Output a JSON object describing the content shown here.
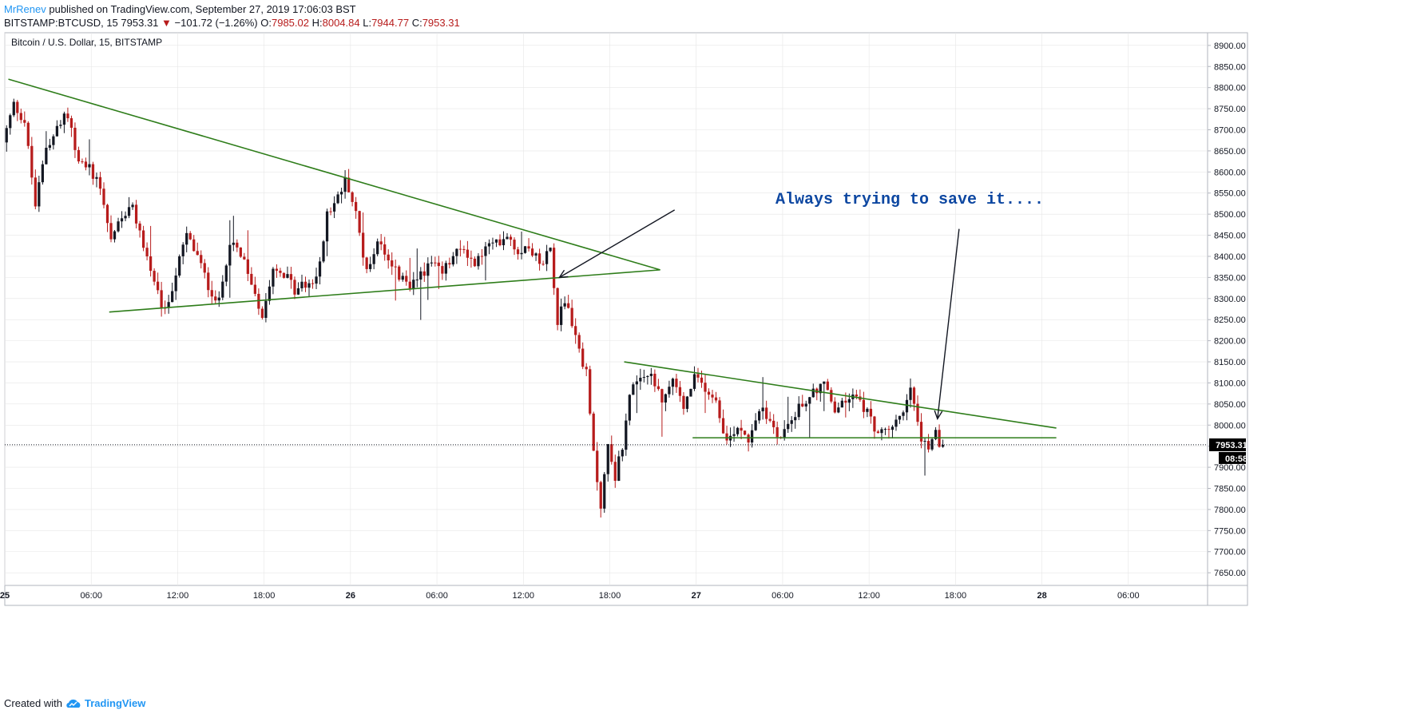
{
  "header": {
    "author": "MrRenev",
    "published_text": " published on TradingView.com, September 27, 2019 17:06:03 BST",
    "symbol_line": "BITSTAMP:BTCUSD, 15",
    "last_price": "7953.31",
    "change_arrow": "▼",
    "change_text": "−101.72 (−1.26%)",
    "o_label": "O:",
    "o_value": "7985.02",
    "h_label": "H:",
    "h_value": "8004.84",
    "l_label": "L:",
    "l_value": "7944.77",
    "c_label": "C:",
    "c_value": "7953.31"
  },
  "footer": {
    "created_with": "Created with",
    "brand": "TradingView",
    "brand_icon": "tradingview-cloud-icon"
  },
  "chart_data": {
    "type": "candlestick",
    "title": "Bitcoin / U.S. Dollar, 15, BITSTAMP",
    "interval_minutes": 15,
    "colors": {
      "up": "#131722",
      "down": "#b71c1c",
      "trendline": "#2e7d1a",
      "annotation": "#0d47a1",
      "grid": "#e6e6e6"
    },
    "ylim": [
      7620,
      8930
    ],
    "price_ticks": [
      "8900.00",
      "8850.00",
      "8800.00",
      "8750.00",
      "8700.00",
      "8650.00",
      "8600.00",
      "8550.00",
      "8500.00",
      "8450.00",
      "8400.00",
      "8350.00",
      "8300.00",
      "8250.00",
      "8200.00",
      "8150.00",
      "8100.00",
      "8050.00",
      "8000.00",
      "7950.00",
      "7900.00",
      "7850.00",
      "7800.00",
      "7750.00",
      "7700.00",
      "7650.00"
    ],
    "xlim": [
      "Sep 25 00:00",
      "Sep 28 11:30"
    ],
    "time_ticks": [
      {
        "label": "25",
        "at": "Sep 25 00:00",
        "bold": true
      },
      {
        "label": "06:00",
        "at": "Sep 25 06:00"
      },
      {
        "label": "12:00",
        "at": "Sep 25 12:00"
      },
      {
        "label": "18:00",
        "at": "Sep 25 18:00"
      },
      {
        "label": "26",
        "at": "Sep 26 00:00",
        "bold": true
      },
      {
        "label": "06:00",
        "at": "Sep 26 06:00"
      },
      {
        "label": "12:00",
        "at": "Sep 26 12:00"
      },
      {
        "label": "18:00",
        "at": "Sep 26 18:00"
      },
      {
        "label": "27",
        "at": "Sep 27 00:00",
        "bold": true
      },
      {
        "label": "06:00",
        "at": "Sep 27 06:00"
      },
      {
        "label": "12:00",
        "at": "Sep 27 12:00"
      },
      {
        "label": "18:00",
        "at": "Sep 27 18:00"
      },
      {
        "label": "28",
        "at": "Sep 28 00:00",
        "bold": true
      },
      {
        "label": "06:00",
        "at": "Sep 28 06:00"
      }
    ],
    "last_price_label": "7953.31",
    "countdown_label": "08:58",
    "price_path": [
      {
        "t": "Sep 25 00:00",
        "p": 8670
      },
      {
        "t": "Sep 25 00:45",
        "p": 8760
      },
      {
        "t": "Sep 25 01:30",
        "p": 8720
      },
      {
        "t": "Sep 25 02:15",
        "p": 8520
      },
      {
        "t": "Sep 25 03:00",
        "p": 8660
      },
      {
        "t": "Sep 25 03:45",
        "p": 8700
      },
      {
        "t": "Sep 25 04:30",
        "p": 8740
      },
      {
        "t": "Sep 25 05:15",
        "p": 8620
      },
      {
        "t": "Sep 25 06:00",
        "p": 8610
      },
      {
        "t": "Sep 25 06:45",
        "p": 8570
      },
      {
        "t": "Sep 25 07:30",
        "p": 8440
      },
      {
        "t": "Sep 25 08:15",
        "p": 8500
      },
      {
        "t": "Sep 25 09:00",
        "p": 8510
      },
      {
        "t": "Sep 25 09:45",
        "p": 8430
      },
      {
        "t": "Sep 25 10:30",
        "p": 8330
      },
      {
        "t": "Sep 25 11:15",
        "p": 8265
      },
      {
        "t": "Sep 25 12:00",
        "p": 8360
      },
      {
        "t": "Sep 25 12:45",
        "p": 8450
      },
      {
        "t": "Sep 25 13:30",
        "p": 8400
      },
      {
        "t": "Sep 25 14:15",
        "p": 8330
      },
      {
        "t": "Sep 25 15:00",
        "p": 8290
      },
      {
        "t": "Sep 25 15:45",
        "p": 8440
      },
      {
        "t": "Sep 25 16:30",
        "p": 8400
      },
      {
        "t": "Sep 25 17:15",
        "p": 8340
      },
      {
        "t": "Sep 25 18:00",
        "p": 8260
      },
      {
        "t": "Sep 25 18:45",
        "p": 8380
      },
      {
        "t": "Sep 25 19:30",
        "p": 8360
      },
      {
        "t": "Sep 25 20:15",
        "p": 8320
      },
      {
        "t": "Sep 25 21:00",
        "p": 8335
      },
      {
        "t": "Sep 25 21:45",
        "p": 8340
      },
      {
        "t": "Sep 25 22:30",
        "p": 8500
      },
      {
        "t": "Sep 25 23:15",
        "p": 8540
      },
      {
        "t": "Sep 25 23:50",
        "p": 8585
      },
      {
        "t": "Sep 26 00:30",
        "p": 8500
      },
      {
        "t": "Sep 26 01:15",
        "p": 8360
      },
      {
        "t": "Sep 26 02:00",
        "p": 8440
      },
      {
        "t": "Sep 26 02:45",
        "p": 8400
      },
      {
        "t": "Sep 26 03:30",
        "p": 8350
      },
      {
        "t": "Sep 26 04:15",
        "p": 8330
      },
      {
        "t": "Sep 26 05:00",
        "p": 8360
      },
      {
        "t": "Sep 26 05:45",
        "p": 8380
      },
      {
        "t": "Sep 26 06:30",
        "p": 8360
      },
      {
        "t": "Sep 26 07:15",
        "p": 8400
      },
      {
        "t": "Sep 26 08:00",
        "p": 8420
      },
      {
        "t": "Sep 26 08:45",
        "p": 8380
      },
      {
        "t": "Sep 26 09:30",
        "p": 8420
      },
      {
        "t": "Sep 26 10:15",
        "p": 8430
      },
      {
        "t": "Sep 26 11:00",
        "p": 8455
      },
      {
        "t": "Sep 26 11:45",
        "p": 8410
      },
      {
        "t": "Sep 26 12:30",
        "p": 8430
      },
      {
        "t": "Sep 26 13:15",
        "p": 8380
      },
      {
        "t": "Sep 26 14:00",
        "p": 8420
      },
      {
        "t": "Sep 26 14:30",
        "p": 8250
      },
      {
        "t": "Sep 26 15:00",
        "p": 8300
      },
      {
        "t": "Sep 26 15:45",
        "p": 8210
      },
      {
        "t": "Sep 26 16:30",
        "p": 8120
      },
      {
        "t": "Sep 26 17:00",
        "p": 7930
      },
      {
        "t": "Sep 26 17:30",
        "p": 7810
      },
      {
        "t": "Sep 26 18:00",
        "p": 7950
      },
      {
        "t": "Sep 26 18:30",
        "p": 7880
      },
      {
        "t": "Sep 26 19:00",
        "p": 7950
      },
      {
        "t": "Sep 26 19:30",
        "p": 8080
      },
      {
        "t": "Sep 26 20:15",
        "p": 8100
      },
      {
        "t": "Sep 26 21:00",
        "p": 8120
      },
      {
        "t": "Sep 26 21:45",
        "p": 8050
      },
      {
        "t": "Sep 26 22:30",
        "p": 8110
      },
      {
        "t": "Sep 26 23:15",
        "p": 8040
      },
      {
        "t": "Sep 27 00:00",
        "p": 8110
      },
      {
        "t": "Sep 27 00:45",
        "p": 8090
      },
      {
        "t": "Sep 27 01:30",
        "p": 8060
      },
      {
        "t": "Sep 27 02:15",
        "p": 7960
      },
      {
        "t": "Sep 27 03:00",
        "p": 8000
      },
      {
        "t": "Sep 27 03:45",
        "p": 7970
      },
      {
        "t": "Sep 27 04:30",
        "p": 8040
      },
      {
        "t": "Sep 27 05:15",
        "p": 8010
      },
      {
        "t": "Sep 27 06:00",
        "p": 7970
      },
      {
        "t": "Sep 27 06:45",
        "p": 8020
      },
      {
        "t": "Sep 27 07:30",
        "p": 8050
      },
      {
        "t": "Sep 27 08:15",
        "p": 8080
      },
      {
        "t": "Sep 27 09:00",
        "p": 8100
      },
      {
        "t": "Sep 27 09:45",
        "p": 8030
      },
      {
        "t": "Sep 27 10:30",
        "p": 8060
      },
      {
        "t": "Sep 27 11:15",
        "p": 8070
      },
      {
        "t": "Sep 27 12:00",
        "p": 8030
      },
      {
        "t": "Sep 27 12:45",
        "p": 7980
      },
      {
        "t": "Sep 27 13:30",
        "p": 7985
      },
      {
        "t": "Sep 27 14:15",
        "p": 8020
      },
      {
        "t": "Sep 27 15:00",
        "p": 8080
      },
      {
        "t": "Sep 27 15:45",
        "p": 7970
      },
      {
        "t": "Sep 27 16:15",
        "p": 7930
      },
      {
        "t": "Sep 27 16:30",
        "p": 7955
      },
      {
        "t": "Sep 27 16:45",
        "p": 7990
      },
      {
        "t": "Sep 27 17:00",
        "p": 7953
      }
    ],
    "trendlines": [
      {
        "name": "upper-descending-line-1",
        "from": {
          "t": "Sep 25 00:15",
          "p": 8820
        },
        "to": {
          "t": "Sep 26 21:30",
          "p": 8368
        }
      },
      {
        "name": "lower-rising-line-1",
        "from": {
          "t": "Sep 25 07:15",
          "p": 8268
        },
        "to": {
          "t": "Sep 26 21:30",
          "p": 8368
        }
      },
      {
        "name": "upper-descending-line-2",
        "from": {
          "t": "Sep 26 19:00",
          "p": 8150
        },
        "to": {
          "t": "Sep 28 01:00",
          "p": 7993
        }
      },
      {
        "name": "horizontal-support-line",
        "from": {
          "t": "Sep 26 23:45",
          "p": 7970
        },
        "to": {
          "t": "Sep 28 01:00",
          "p": 7970
        }
      }
    ],
    "annotation": {
      "text": "Always trying to save it....",
      "anchor": {
        "t": "Sep 27 06:00",
        "p": 8540
      },
      "arrows": [
        {
          "from": {
            "t": "Sep 26 22:30",
            "p": 8510
          },
          "to": {
            "t": "Sep 26 14:30",
            "p": 8350
          }
        },
        {
          "from": {
            "t": "Sep 27 18:15",
            "p": 8465
          },
          "to": {
            "t": "Sep 27 16:45",
            "p": 8015
          }
        }
      ]
    }
  }
}
